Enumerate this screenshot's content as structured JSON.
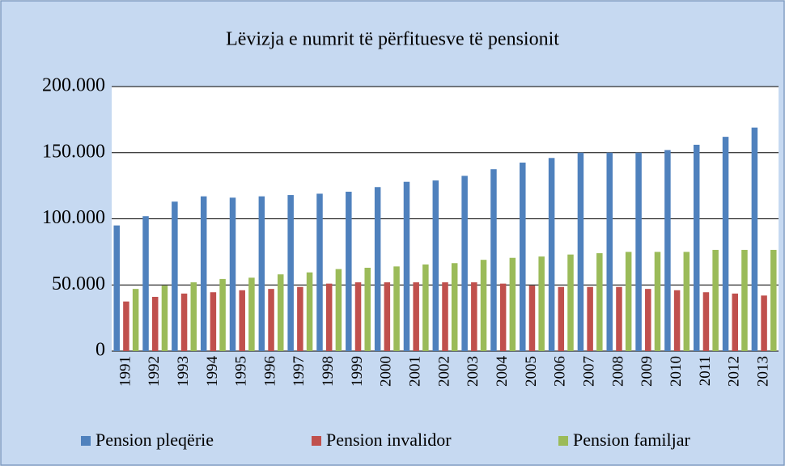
{
  "chart_data": {
    "type": "bar",
    "title": "Lëvizja e numrit të përfituesve të pensionit",
    "categories": [
      "1991",
      "1992",
      "1993",
      "1994",
      "1995",
      "1996",
      "1997",
      "1998",
      "1999",
      "2000",
      "2001",
      "2002",
      "2003",
      "2004",
      "2005",
      "2006",
      "2007",
      "2008",
      "2009",
      "2010",
      "2011",
      "2012",
      "2013"
    ],
    "series": [
      {
        "name": "Pension pleqërie",
        "color": "#4f81bd",
        "values": [
          95000,
          102000,
          113000,
          117000,
          116000,
          117000,
          118000,
          119000,
          120500,
          124000,
          128000,
          129000,
          132500,
          137500,
          142500,
          146000,
          150000,
          150000,
          150000,
          152000,
          156000,
          162000,
          169000
        ]
      },
      {
        "name": "Pension invalidor",
        "color": "#c0504d",
        "values": [
          37500,
          41000,
          43500,
          44500,
          46000,
          47000,
          48500,
          51000,
          52000,
          52000,
          52000,
          52000,
          52000,
          51000,
          49500,
          48500,
          48500,
          48500,
          47000,
          46000,
          44500,
          43500,
          42000
        ]
      },
      {
        "name": "Pension familjar",
        "color": "#9bbb59",
        "values": [
          47000,
          49500,
          52000,
          54500,
          55500,
          58000,
          59500,
          62000,
          63000,
          64000,
          65500,
          66500,
          69000,
          70500,
          71500,
          73000,
          74000,
          75000,
          75000,
          75000,
          76500,
          76500,
          76500
        ]
      }
    ],
    "ylim": [
      0,
      200000
    ],
    "yticks": [
      0,
      {
        "value": 50000,
        "label": "50.000"
      },
      {
        "value": 100000,
        "label": "100.000"
      },
      {
        "value": 150000,
        "label": "150.000"
      },
      {
        "value": 200000,
        "label": "200.000"
      }
    ],
    "grid": true,
    "legend": "bottom"
  }
}
